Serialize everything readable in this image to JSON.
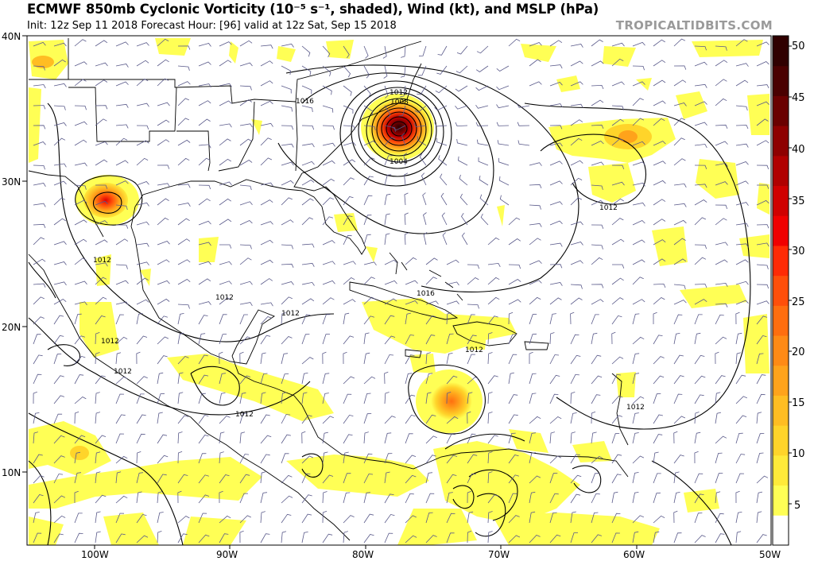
{
  "header": {
    "title": "ECMWF 850mb Cyclonic Vorticity (10⁻⁵ s⁻¹, shaded), Wind (kt), and MSLP (hPa)",
    "subtitle": "Init: 12z Sep 11 2018   Forecast Hour: [96]   valid at 12z Sat, Sep 15 2018",
    "brand": "TROPICALTIDBITS.COM"
  },
  "map": {
    "lon_range": [
      -105,
      -50
    ],
    "lat_range": [
      5,
      40
    ],
    "lat_labels": [
      "40N",
      "30N",
      "20N",
      "10N"
    ],
    "lon_labels": [
      "100W",
      "90W",
      "80W",
      "70W",
      "60W",
      "50W"
    ],
    "isobar_labels": [
      "1016",
      "1012",
      "1008",
      "1004",
      "1012",
      "1012",
      "1012",
      "1012",
      "1016",
      "1012",
      "1012",
      "1012",
      "1012",
      "1012"
    ]
  },
  "colorbar": {
    "ticks": [
      "50",
      "45",
      "40",
      "35",
      "30",
      "25",
      "20",
      "15",
      "10",
      "5"
    ],
    "colors": [
      "#ffffff",
      "#ffff55",
      "#ffea3a",
      "#ffd42a",
      "#ffbd22",
      "#ffa31b",
      "#ff8a15",
      "#ff6e0f",
      "#ff4f0a",
      "#ff2b05",
      "#f00000",
      "#d00000",
      "#b00000",
      "#8e0000",
      "#6a0000",
      "#4a0000",
      "#300000"
    ]
  }
}
